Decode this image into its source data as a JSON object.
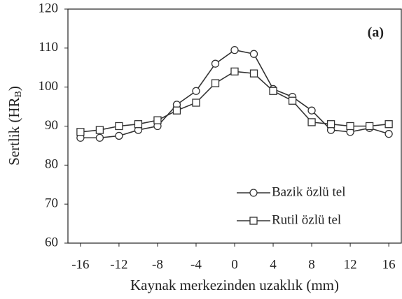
{
  "chart_data": {
    "type": "line",
    "annotation": "(a)",
    "xlabel": "Kaynak merkezinden uzaklık (mm)",
    "ylabel_parts": [
      "Sertlik (HR",
      "B",
      ")"
    ],
    "x": [
      -16,
      -14,
      -12,
      -10,
      -8,
      -6,
      -4,
      -2,
      0,
      2,
      4,
      6,
      8,
      10,
      12,
      14,
      16
    ],
    "series": [
      {
        "name": "Bazik özlü tel",
        "color": "#333333",
        "marker": "circle",
        "values": [
          87,
          87,
          87.5,
          89,
          90,
          95.5,
          99,
          106,
          109.5,
          108.5,
          99.5,
          97.5,
          94,
          89,
          88.5,
          89.5,
          88
        ]
      },
      {
        "name": "Rutil özlü tel",
        "color": "#333333",
        "marker": "square",
        "values": [
          88.5,
          89,
          90,
          90.5,
          91.5,
          94,
          96,
          101,
          104,
          103.5,
          99,
          96.5,
          91,
          90.5,
          90,
          90,
          90.5
        ]
      }
    ],
    "xlim": [
      -17.3,
      17.3
    ],
    "xticks": [
      -16,
      -12,
      -8,
      -4,
      0,
      4,
      8,
      12,
      16
    ],
    "ylim": [
      60,
      120
    ],
    "yticks": [
      60,
      70,
      80,
      90,
      100,
      110,
      120
    ],
    "grid": false,
    "legend": "lower right"
  }
}
